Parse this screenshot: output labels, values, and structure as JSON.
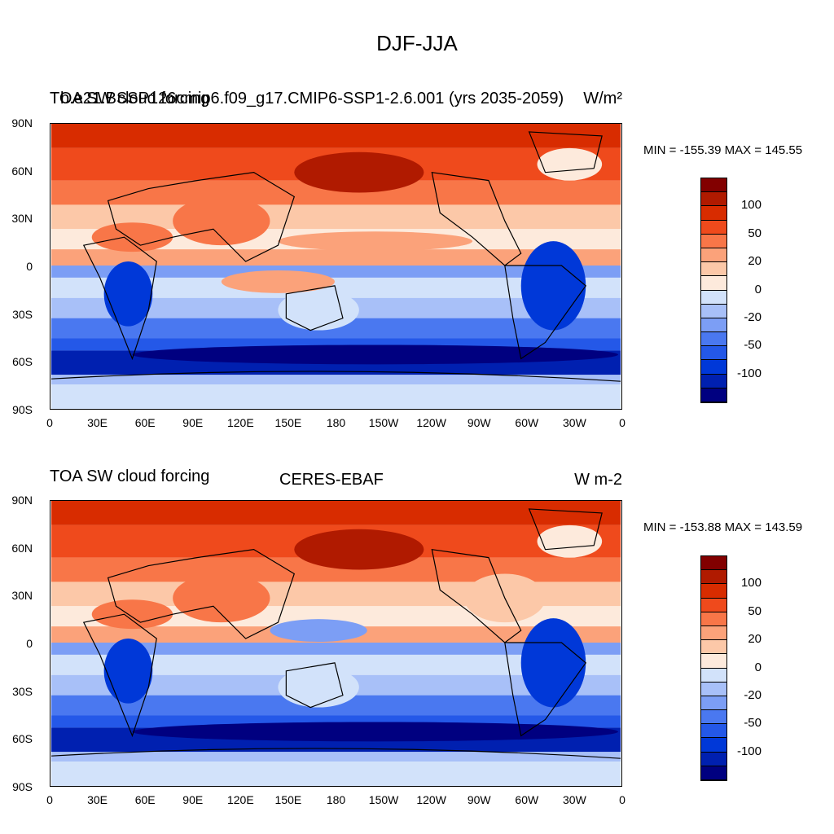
{
  "title": "DJF-JJA",
  "lat_ticks": [
    "90N",
    "60N",
    "30N",
    "0",
    "30S",
    "60S",
    "90S"
  ],
  "lon_ticks": [
    "0",
    "30E",
    "60E",
    "90E",
    "120E",
    "150E",
    "180",
    "150W",
    "120W",
    "90W",
    "60W",
    "30W",
    "0"
  ],
  "colorbar": {
    "colors": [
      "#000080",
      "#0020b0",
      "#0038d8",
      "#2458e8",
      "#4a78f0",
      "#7c9ef5",
      "#a8c0f8",
      "#d2e2fa",
      "#fdeadc",
      "#fcc8a8",
      "#fba27a",
      "#f87648",
      "#ef4a1c",
      "#d82c00",
      "#b01a00",
      "#820000"
    ],
    "labels": [
      "100",
      "50",
      "20",
      "0",
      "-20",
      "-50",
      "-100"
    ]
  },
  "panels": [
    {
      "left_title_a": "TOA SW cloud forcing",
      "left_title_b": "b.e21.BSSP126cmip6.f09_g17.CMIP6-SSP1-2.6.001 (yrs 2035-2059)",
      "center_title": "",
      "units": "W/m²",
      "minmax": "MIN = -155.39 MAX = 145.55"
    },
    {
      "left_title_a": "TOA SW cloud forcing",
      "left_title_b": "",
      "center_title": "CERES-EBAF",
      "units": "W m-2",
      "minmax": "MIN = -153.88 MAX = 143.59"
    }
  ]
}
